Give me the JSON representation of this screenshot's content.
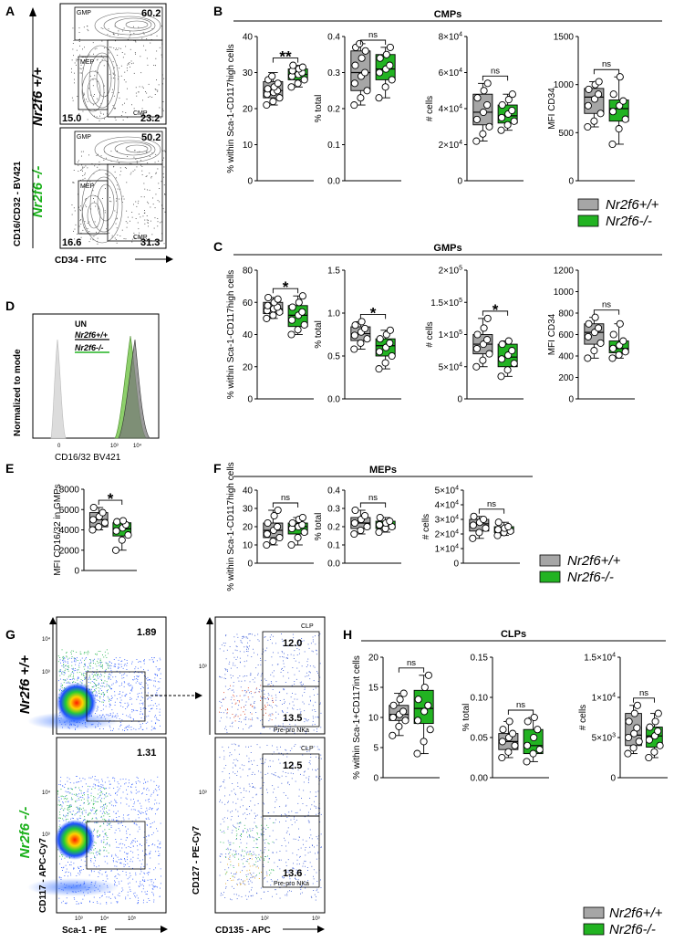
{
  "panel_labels": {
    "A": "A",
    "B": "B",
    "C": "C",
    "D": "D",
    "E": "E",
    "F": "F",
    "G": "G",
    "H": "H"
  },
  "colors": {
    "wt": "#a6a6a6",
    "ko": "#22b322",
    "ko_text": "#1ab01a",
    "wt_text": "#000000"
  },
  "genotype": {
    "wt": "Nr2f6 +/+",
    "ko": "Nr2f6 -/-"
  },
  "legend": {
    "wt": "Nr2f6+/+",
    "ko": "Nr2f6-/-"
  },
  "panel_A": {
    "x_label": "CD34 - FITC",
    "y_label": "CD16/CD32 - BV421",
    "wt_gates": {
      "GMP": {
        "name": "GMP",
        "value": "60.2"
      },
      "MEP": {
        "name": "MEP",
        "value": "15.0"
      },
      "CMP": {
        "name": "CMP",
        "value": "23.2"
      }
    },
    "ko_gates": {
      "GMP": {
        "name": "GMP",
        "value": "50.2"
      },
      "MEP": {
        "name": "MEP",
        "value": "16.6"
      },
      "CMP": {
        "name": "CMP",
        "value": "31.3"
      }
    }
  },
  "panel_D": {
    "x_label": "CD16/32 BV421",
    "y_label": "Normalized to mode",
    "legend": [
      "UN",
      "Nr2f6+/+",
      "Nr2f6-/-"
    ]
  },
  "panel_G": {
    "left_x_label": "Sca-1 - PE",
    "left_y_label": "CD117 - APC-Cy7",
    "right_x_label": "CD135 - APC",
    "right_y_label": "CD127 - PE-Cy7",
    "wt_gate": "1.89",
    "ko_gate": "1.31",
    "wt_clp": {
      "name": "CLP",
      "value": "12.0"
    },
    "wt_prepro": {
      "name": "Pre-pro NKa",
      "value": "13.5"
    },
    "ko_clp": {
      "name": "CLP",
      "value": "12.5"
    },
    "ko_prepro": {
      "name": "Pre-pro NKa",
      "value": "13.6"
    }
  },
  "chart_data": [
    {
      "panel": "B",
      "title": "CMPs",
      "type": "box",
      "plots": [
        {
          "ylabel": "% within Sca-1-CD117high cells",
          "ylim": [
            0,
            40
          ],
          "ticks": [
            "0",
            "10",
            "20",
            "30",
            "40"
          ],
          "sig": "**",
          "wt": {
            "q1": 23,
            "median": 25,
            "q3": 27.5,
            "min": 21,
            "max": 30,
            "points": [
              21,
              22,
              23,
              24,
              24.5,
              25,
              25.5,
              26,
              27,
              28,
              29
            ]
          },
          "ko": {
            "q1": 28,
            "median": 29.5,
            "q3": 31,
            "min": 26,
            "max": 32,
            "points": [
              26,
              27,
              28,
              29,
              29.5,
              30,
              30.5,
              31,
              31.5,
              32
            ]
          }
        },
        {
          "ylabel": "% total",
          "ylim": [
            0,
            0.4
          ],
          "ticks": [
            "0.0",
            "0.1",
            "0.2",
            "0.3",
            "0.4"
          ],
          "sig": "ns",
          "wt": {
            "q1": 0.25,
            "median": 0.3,
            "q3": 0.36,
            "min": 0.21,
            "max": 0.38,
            "points": [
              0.21,
              0.23,
              0.25,
              0.27,
              0.29,
              0.3,
              0.32,
              0.34,
              0.36,
              0.37,
              0.38
            ]
          },
          "ko": {
            "q1": 0.28,
            "median": 0.31,
            "q3": 0.35,
            "min": 0.23,
            "max": 0.37,
            "points": [
              0.23,
              0.26,
              0.28,
              0.3,
              0.31,
              0.32,
              0.34,
              0.35,
              0.37
            ]
          }
        },
        {
          "ylabel": "# cells",
          "ylim": [
            0,
            80000
          ],
          "ticks": [
            "0",
            "2x10^4",
            "4x10^4",
            "6x10^4",
            "8x10^4"
          ],
          "sig": "ns",
          "wt": {
            "q1": 31000,
            "median": 38000,
            "q3": 48000,
            "min": 22000,
            "max": 54000,
            "points": [
              22000,
              26000,
              30000,
              34000,
              38000,
              42000,
              46000,
              50000,
              54000
            ]
          },
          "ko": {
            "q1": 32000,
            "median": 36000,
            "q3": 42000,
            "min": 28000,
            "max": 48000,
            "points": [
              28000,
              31000,
              33000,
              35000,
              37000,
              39000,
              42000,
              45000,
              48000
            ]
          }
        },
        {
          "ylabel": "MFI CD34",
          "ylim": [
            0,
            1500
          ],
          "ticks": [
            "0",
            "500",
            "1000",
            "1500"
          ],
          "sig": "ns",
          "wt": {
            "q1": 700,
            "median": 870,
            "q3": 960,
            "min": 560,
            "max": 1030,
            "points": [
              560,
              620,
              700,
              780,
              850,
              900,
              950,
              1000,
              1030
            ]
          },
          "ko": {
            "q1": 620,
            "median": 750,
            "q3": 840,
            "min": 380,
            "max": 1080,
            "points": [
              380,
              540,
              640,
              720,
              780,
              830,
              900,
              1080
            ]
          }
        }
      ]
    },
    {
      "panel": "C",
      "title": "GMPs",
      "type": "box",
      "plots": [
        {
          "ylabel": "% within Sca-1-CD117high cells",
          "ylim": [
            0,
            80
          ],
          "ticks": [
            "0",
            "20",
            "40",
            "60",
            "80"
          ],
          "sig": "*",
          "wt": {
            "q1": 53,
            "median": 56,
            "q3": 60,
            "min": 50,
            "max": 63,
            "points": [
              50,
              52,
              54,
              55,
              56,
              57,
              58,
              60,
              62,
              63
            ]
          },
          "ko": {
            "q1": 45,
            "median": 52,
            "q3": 58,
            "min": 40,
            "max": 64,
            "points": [
              40,
              43,
              46,
              49,
              52,
              54,
              57,
              60,
              64
            ]
          }
        },
        {
          "ylabel": "% total",
          "ylim": [
            0,
            1.5
          ],
          "ticks": [
            "0.0",
            "0.5",
            "1.0",
            "1.5"
          ],
          "sig": "*",
          "wt": {
            "q1": 0.68,
            "median": 0.76,
            "q3": 0.84,
            "min": 0.58,
            "max": 0.9,
            "points": [
              0.58,
              0.65,
              0.7,
              0.74,
              0.78,
              0.82,
              0.86,
              0.9
            ]
          },
          "ko": {
            "q1": 0.5,
            "median": 0.62,
            "q3": 0.7,
            "min": 0.35,
            "max": 0.8,
            "points": [
              0.35,
              0.42,
              0.5,
              0.55,
              0.6,
              0.65,
              0.7,
              0.75,
              0.8
            ]
          }
        },
        {
          "ylabel": "# cells",
          "ylim": [
            0,
            200000
          ],
          "ticks": [
            "0",
            "5x10^4",
            "1x10^5",
            "1.5x10^5",
            "2x10^5"
          ],
          "sig": "*",
          "wt": {
            "q1": 70000,
            "median": 85000,
            "q3": 100000,
            "min": 50000,
            "max": 125000,
            "points": [
              50000,
              60000,
              70000,
              78000,
              85000,
              92000,
              100000,
              110000,
              125000
            ]
          },
          "ko": {
            "q1": 50000,
            "median": 65000,
            "q3": 85000,
            "min": 35000,
            "max": 90000,
            "points": [
              35000,
              45000,
              55000,
              62000,
              68000,
              75000,
              85000,
              90000
            ]
          }
        },
        {
          "ylabel": "MFI CD34",
          "ylim": [
            0,
            1200
          ],
          "ticks": [
            "0",
            "200",
            "400",
            "600",
            "800",
            "1000",
            "1200"
          ],
          "sig": "ns",
          "wt": {
            "q1": 510,
            "median": 620,
            "q3": 700,
            "min": 380,
            "max": 760,
            "points": [
              380,
              450,
              520,
              580,
              620,
              660,
              700,
              760
            ]
          },
          "ko": {
            "q1": 430,
            "median": 470,
            "q3": 540,
            "min": 380,
            "max": 700,
            "points": [
              380,
              410,
              440,
              470,
              500,
              540,
              600,
              700
            ]
          }
        }
      ]
    },
    {
      "panel": "E",
      "type": "box",
      "plots": [
        {
          "ylabel": "MFI CD16/32 in GMPs",
          "ylim": [
            0,
            8000
          ],
          "ticks": [
            "0",
            "2000",
            "4000",
            "6000",
            "8000"
          ],
          "sig": "*",
          "wt": {
            "q1": 4300,
            "median": 5000,
            "q3": 5700,
            "min": 4000,
            "max": 6200,
            "points": [
              4000,
              4300,
              4700,
              5000,
              5300,
              5700,
              6200
            ]
          },
          "ko": {
            "q1": 3400,
            "median": 4100,
            "q3": 4700,
            "min": 2000,
            "max": 4900,
            "points": [
              2000,
              3000,
              3500,
              3900,
              4200,
              4500,
              4800,
              4900
            ]
          }
        }
      ]
    },
    {
      "panel": "F",
      "title": "MEPs",
      "type": "box",
      "plots": [
        {
          "ylabel": "% within Sca-1-CD117high cells",
          "ylim": [
            0,
            40
          ],
          "ticks": [
            "0",
            "10",
            "20",
            "30",
            "40"
          ],
          "sig": "ns",
          "wt": {
            "q1": 14,
            "median": 18,
            "q3": 22,
            "min": 10,
            "max": 29,
            "points": [
              10,
              12,
              14,
              16,
              18,
              20,
              22,
              26,
              29
            ]
          },
          "ko": {
            "q1": 16,
            "median": 20,
            "q3": 22,
            "min": 10,
            "max": 25,
            "points": [
              10,
              14,
              17,
              19,
              20,
              21,
              22,
              24,
              25
            ]
          }
        },
        {
          "ylabel": "% total",
          "ylim": [
            0,
            0.4
          ],
          "ticks": [
            "0.0",
            "0.1",
            "0.2",
            "0.3",
            "0.4"
          ],
          "sig": "ns",
          "wt": {
            "q1": 0.19,
            "median": 0.22,
            "q3": 0.25,
            "min": 0.16,
            "max": 0.29,
            "points": [
              0.16,
              0.18,
              0.2,
              0.22,
              0.24,
              0.26,
              0.29
            ]
          },
          "ko": {
            "q1": 0.19,
            "median": 0.21,
            "q3": 0.23,
            "min": 0.17,
            "max": 0.25,
            "points": [
              0.17,
              0.19,
              0.2,
              0.21,
              0.22,
              0.23,
              0.25
            ]
          }
        },
        {
          "ylabel": "# cells",
          "ylim": [
            0,
            50000
          ],
          "ticks": [
            "0",
            "1x10^4",
            "2x10^4",
            "3x10^4",
            "4x10^4",
            "5x10^4"
          ],
          "sig": "ns",
          "wt": {
            "q1": 22000,
            "median": 27000,
            "q3": 30000,
            "min": 17000,
            "max": 32000,
            "points": [
              17000,
              21000,
              24000,
              26000,
              28000,
              30000,
              32000
            ]
          },
          "ko": {
            "q1": 21000,
            "median": 23000,
            "q3": 25000,
            "min": 19000,
            "max": 28000,
            "points": [
              19000,
              21000,
              22000,
              23000,
              24000,
              25000,
              28000
            ]
          }
        }
      ]
    },
    {
      "panel": "H",
      "title": "CLPs",
      "type": "box",
      "plots": [
        {
          "ylabel": "% within Sca-1+CD117int cells",
          "ylim": [
            0,
            20
          ],
          "ticks": [
            "0",
            "5",
            "10",
            "15",
            "20"
          ],
          "sig": "ns",
          "wt": {
            "q1": 9.5,
            "median": 10.5,
            "q3": 12,
            "min": 7,
            "max": 14,
            "points": [
              7,
              8.5,
              9.5,
              10,
              10.5,
              11,
              12,
              13,
              14
            ]
          },
          "ko": {
            "q1": 9,
            "median": 11.5,
            "q3": 14.5,
            "min": 4,
            "max": 17,
            "points": [
              4,
              6,
              8,
              9.5,
              11,
              12,
              13,
              15,
              17
            ]
          }
        },
        {
          "ylabel": "% total",
          "ylim": [
            0,
            0.15
          ],
          "ticks": [
            "0.00",
            "0.05",
            "0.10",
            "0.15"
          ],
          "sig": "ns",
          "wt": {
            "q1": 0.035,
            "median": 0.045,
            "q3": 0.055,
            "min": 0.025,
            "max": 0.07,
            "points": [
              0.025,
              0.032,
              0.04,
              0.045,
              0.05,
              0.055,
              0.06,
              0.07
            ]
          },
          "ko": {
            "q1": 0.03,
            "median": 0.04,
            "q3": 0.06,
            "min": 0.02,
            "max": 0.075,
            "points": [
              0.02,
              0.03,
              0.035,
              0.04,
              0.05,
              0.06,
              0.07,
              0.075
            ]
          }
        },
        {
          "ylabel": "# cells",
          "ylim": [
            0,
            15000
          ],
          "ticks": [
            "0",
            "5x10^3",
            "1x10^4",
            "1.5x10^4"
          ],
          "sig": "ns",
          "wt": {
            "q1": 4000,
            "median": 5300,
            "q3": 8000,
            "min": 3000,
            "max": 9000,
            "points": [
              3000,
              3700,
              4500,
              5000,
              5500,
              6200,
              7000,
              8000,
              9000
            ]
          },
          "ko": {
            "q1": 3800,
            "median": 5200,
            "q3": 6300,
            "min": 2500,
            "max": 8000,
            "points": [
              2500,
              3200,
              4000,
              4700,
              5200,
              5800,
              6300,
              7000,
              8000
            ]
          }
        }
      ]
    }
  ]
}
